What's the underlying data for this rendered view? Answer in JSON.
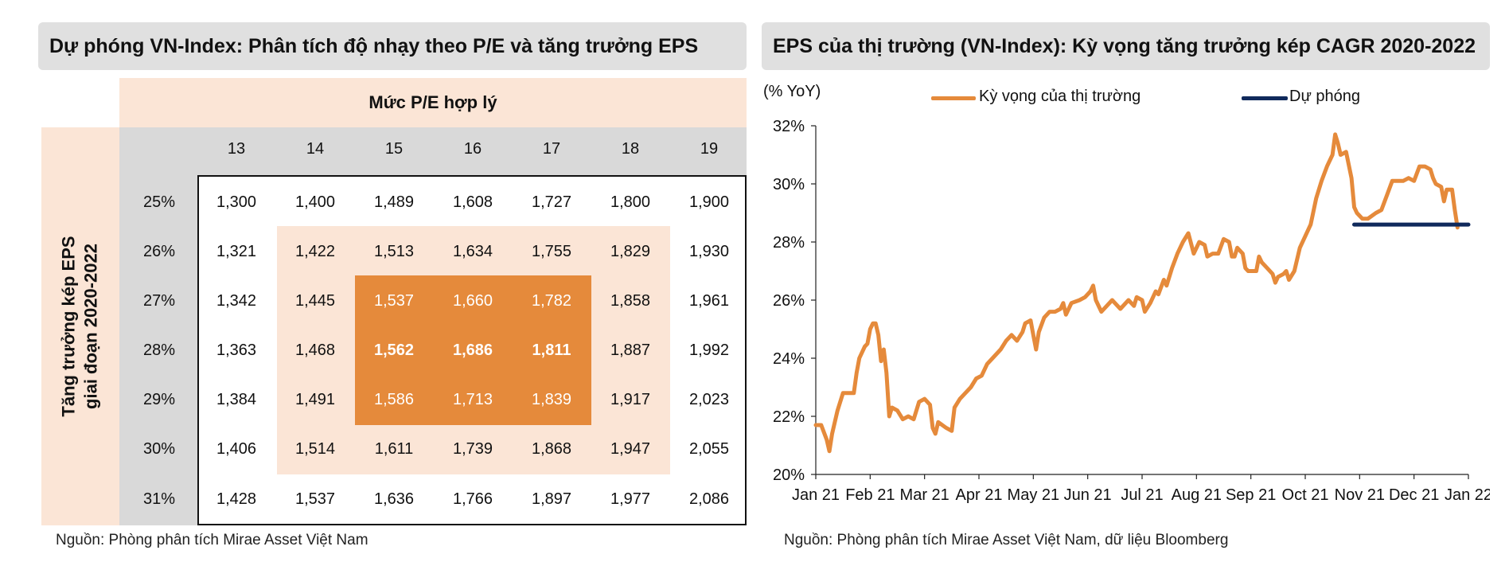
{
  "left_panel": {
    "title": "Dự phóng VN-Index: Phân tích độ nhạy theo P/E và tăng trưởng EPS",
    "pe_header": "Mức P/E hợp lý",
    "eps_axis_line1": "Tăng trưởng kép EPS",
    "eps_axis_line2": "giai đoạn 2020-2022",
    "pe_levels": [
      "13",
      "14",
      "15",
      "16",
      "17",
      "18",
      "19"
    ],
    "growth_rates": [
      "25%",
      "26%",
      "27%",
      "28%",
      "29%",
      "30%",
      "31%"
    ],
    "values": [
      [
        "1,300",
        "1,400",
        "1,489",
        "1,608",
        "1,727",
        "1,800",
        "1,900"
      ],
      [
        "1,321",
        "1,422",
        "1,513",
        "1,634",
        "1,755",
        "1,829",
        "1,930"
      ],
      [
        "1,342",
        "1,445",
        "1,537",
        "1,660",
        "1,782",
        "1,858",
        "1,961"
      ],
      [
        "1,363",
        "1,468",
        "1,562",
        "1,686",
        "1,811",
        "1,887",
        "1,992"
      ],
      [
        "1,384",
        "1,491",
        "1,586",
        "1,713",
        "1,839",
        "1,917",
        "2,023"
      ],
      [
        "1,406",
        "1,514",
        "1,611",
        "1,739",
        "1,868",
        "1,947",
        "2,055"
      ],
      [
        "1,428",
        "1,537",
        "1,636",
        "1,766",
        "1,897",
        "1,977",
        "2,086"
      ]
    ],
    "source": "Nguồn: Phòng phân tích Mirae Asset Việt Nam",
    "colors": {
      "light_band": "#fbe5d6",
      "dark_band": "#e58a3b",
      "gray": "#d9d9d9"
    }
  },
  "right_panel": {
    "title": "EPS của thị trường (VN-Index): Kỳ vọng tăng trưởng kép CAGR 2020-2022",
    "source": "Nguồn: Phòng phân tích Mirae Asset Việt Nam, dữ liệu Bloomberg"
  },
  "chart_data": {
    "type": "line",
    "title": "EPS của thị trường (VN-Index): Kỳ vọng tăng trưởng kép CAGR 2020-2022",
    "ylabel": "(% YoY)",
    "xlabel": "",
    "x_tick_labels": [
      "Jan 21",
      "Feb 21",
      "Mar 21",
      "Apr 21",
      "May 21",
      "Jun 21",
      "Jul 21",
      "Aug 21",
      "Sep 21",
      "Oct 21",
      "Nov 21",
      "Dec 21",
      "Jan 22"
    ],
    "y_tick_labels": [
      "20%",
      "22%",
      "24%",
      "26%",
      "28%",
      "30%",
      "32%"
    ],
    "ylim": [
      20,
      32
    ],
    "xlim": [
      0,
      12
    ],
    "legend_position": "top",
    "series": [
      {
        "name": "Kỳ vọng của thị trường",
        "color": "#e58a3b",
        "points": [
          [
            0.0,
            21.7
          ],
          [
            0.1,
            21.7
          ],
          [
            0.2,
            21.2
          ],
          [
            0.25,
            20.8
          ],
          [
            0.3,
            21.4
          ],
          [
            0.4,
            22.2
          ],
          [
            0.5,
            22.8
          ],
          [
            0.6,
            22.8
          ],
          [
            0.7,
            22.8
          ],
          [
            0.75,
            23.5
          ],
          [
            0.8,
            24.0
          ],
          [
            0.9,
            24.4
          ],
          [
            0.95,
            24.5
          ],
          [
            1.0,
            25.0
          ],
          [
            1.05,
            25.2
          ],
          [
            1.1,
            25.2
          ],
          [
            1.15,
            24.8
          ],
          [
            1.2,
            23.9
          ],
          [
            1.25,
            24.3
          ],
          [
            1.3,
            23.5
          ],
          [
            1.35,
            22.0
          ],
          [
            1.4,
            22.3
          ],
          [
            1.5,
            22.2
          ],
          [
            1.6,
            21.9
          ],
          [
            1.7,
            22.0
          ],
          [
            1.8,
            21.9
          ],
          [
            1.9,
            22.5
          ],
          [
            2.0,
            22.6
          ],
          [
            2.1,
            22.4
          ],
          [
            2.15,
            21.6
          ],
          [
            2.2,
            21.4
          ],
          [
            2.25,
            21.8
          ],
          [
            2.4,
            21.6
          ],
          [
            2.5,
            21.5
          ],
          [
            2.55,
            22.3
          ],
          [
            2.65,
            22.6
          ],
          [
            2.75,
            22.8
          ],
          [
            2.85,
            23.0
          ],
          [
            2.95,
            23.3
          ],
          [
            3.05,
            23.4
          ],
          [
            3.15,
            23.8
          ],
          [
            3.25,
            24.0
          ],
          [
            3.4,
            24.3
          ],
          [
            3.5,
            24.6
          ],
          [
            3.6,
            24.8
          ],
          [
            3.7,
            24.6
          ],
          [
            3.8,
            24.9
          ],
          [
            3.85,
            25.2
          ],
          [
            3.95,
            25.3
          ],
          [
            4.0,
            24.8
          ],
          [
            4.05,
            24.3
          ],
          [
            4.1,
            24.9
          ],
          [
            4.2,
            25.4
          ],
          [
            4.3,
            25.6
          ],
          [
            4.4,
            25.6
          ],
          [
            4.5,
            25.7
          ],
          [
            4.55,
            25.9
          ],
          [
            4.6,
            25.5
          ],
          [
            4.7,
            25.9
          ],
          [
            4.85,
            26.0
          ],
          [
            4.95,
            26.1
          ],
          [
            5.05,
            26.3
          ],
          [
            5.1,
            26.5
          ],
          [
            5.15,
            26.0
          ],
          [
            5.25,
            25.6
          ],
          [
            5.35,
            25.8
          ],
          [
            5.45,
            26.0
          ],
          [
            5.6,
            25.7
          ],
          [
            5.75,
            26.0
          ],
          [
            5.85,
            25.8
          ],
          [
            5.9,
            26.1
          ],
          [
            6.0,
            26.0
          ],
          [
            6.05,
            25.6
          ],
          [
            6.15,
            25.9
          ],
          [
            6.25,
            26.3
          ],
          [
            6.3,
            26.2
          ],
          [
            6.4,
            26.7
          ],
          [
            6.45,
            26.5
          ],
          [
            6.55,
            27.1
          ],
          [
            6.65,
            27.6
          ],
          [
            6.75,
            28.0
          ],
          [
            6.85,
            28.3
          ],
          [
            6.95,
            27.6
          ],
          [
            7.05,
            28.0
          ],
          [
            7.15,
            27.9
          ],
          [
            7.2,
            27.5
          ],
          [
            7.3,
            27.6
          ],
          [
            7.4,
            27.6
          ],
          [
            7.5,
            28.1
          ],
          [
            7.6,
            28.0
          ],
          [
            7.65,
            27.5
          ],
          [
            7.7,
            27.5
          ],
          [
            7.75,
            27.8
          ],
          [
            7.85,
            27.6
          ],
          [
            7.9,
            27.1
          ],
          [
            7.95,
            27.0
          ],
          [
            8.1,
            27.0
          ],
          [
            8.15,
            27.5
          ],
          [
            8.2,
            27.3
          ],
          [
            8.3,
            27.1
          ],
          [
            8.4,
            26.9
          ],
          [
            8.45,
            26.6
          ],
          [
            8.5,
            26.8
          ],
          [
            8.6,
            26.9
          ],
          [
            8.65,
            27.0
          ],
          [
            8.7,
            26.7
          ],
          [
            8.8,
            27.0
          ],
          [
            8.9,
            27.8
          ],
          [
            9.0,
            28.2
          ],
          [
            9.1,
            28.6
          ],
          [
            9.2,
            29.5
          ],
          [
            9.3,
            30.1
          ],
          [
            9.4,
            30.6
          ],
          [
            9.5,
            31.0
          ],
          [
            9.55,
            31.7
          ],
          [
            9.6,
            31.4
          ],
          [
            9.65,
            31.0
          ],
          [
            9.75,
            31.1
          ],
          [
            9.85,
            30.2
          ],
          [
            9.9,
            29.2
          ],
          [
            9.95,
            29.0
          ],
          [
            10.05,
            28.8
          ],
          [
            10.15,
            28.8
          ],
          [
            10.3,
            29.0
          ],
          [
            10.4,
            29.1
          ],
          [
            10.5,
            29.6
          ],
          [
            10.6,
            30.1
          ],
          [
            10.7,
            30.1
          ],
          [
            10.8,
            30.1
          ],
          [
            10.9,
            30.2
          ],
          [
            11.0,
            30.1
          ],
          [
            11.1,
            30.6
          ],
          [
            11.2,
            30.6
          ],
          [
            11.3,
            30.5
          ],
          [
            11.35,
            30.2
          ],
          [
            11.4,
            30.0
          ],
          [
            11.5,
            29.9
          ],
          [
            11.55,
            29.4
          ],
          [
            11.6,
            29.8
          ],
          [
            11.7,
            29.8
          ],
          [
            11.75,
            29.1
          ],
          [
            11.8,
            28.5
          ]
        ]
      },
      {
        "name": "Dự phóng",
        "color": "#102a5c",
        "points": [
          [
            9.9,
            28.6
          ],
          [
            12.0,
            28.6
          ]
        ]
      }
    ]
  }
}
